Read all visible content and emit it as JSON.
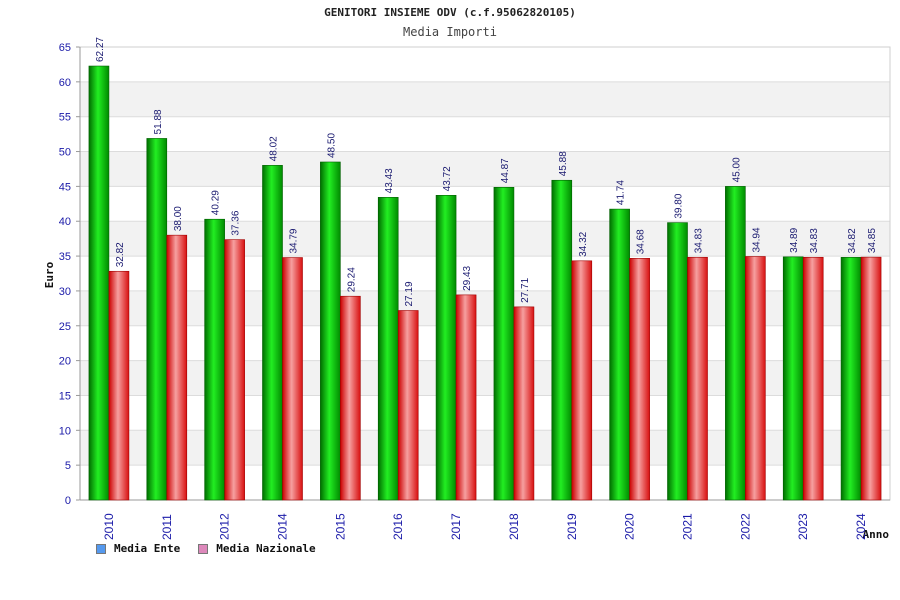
{
  "chart_data": {
    "type": "bar",
    "title": "GENITORI INSIEME ODV (c.f.95062820105)",
    "subtitle": "Media Importi",
    "ylabel": "Euro",
    "xlabel": "Anno",
    "ylim": [
      0,
      65
    ],
    "yticks": [
      0,
      5,
      10,
      15,
      20,
      25,
      30,
      35,
      40,
      45,
      50,
      55,
      60,
      65
    ],
    "categories": [
      "2010",
      "2011",
      "2012",
      "2014",
      "2015",
      "2016",
      "2017",
      "2018",
      "2019",
      "2020",
      "2021",
      "2022",
      "2023",
      "2024"
    ],
    "series": [
      {
        "name": "Media Ente",
        "color": "#00aa00",
        "values": [
          62.27,
          51.88,
          40.29,
          48.02,
          48.5,
          43.43,
          43.72,
          44.87,
          45.88,
          41.74,
          39.8,
          45.0,
          34.89,
          34.82
        ],
        "labels": [
          "62.27",
          "51.88",
          "40.29",
          "48.02",
          "48.50",
          "43.43",
          "43.72",
          "44.87",
          "45.88",
          "41.74",
          "39.80",
          "45.00",
          "34.89",
          "34.82"
        ]
      },
      {
        "name": "Media Nazionale",
        "color": "#dd2222",
        "values": [
          32.82,
          38.0,
          37.36,
          34.79,
          29.24,
          27.19,
          29.43,
          27.71,
          34.32,
          34.68,
          34.83,
          34.94,
          34.83,
          34.85
        ],
        "labels": [
          "32.82",
          "38.00",
          "37.36",
          "34.79",
          "29.24",
          "27.19",
          "29.43",
          "27.71",
          "34.32",
          "34.68",
          "34.83",
          "34.94",
          "34.83",
          "34.85"
        ]
      }
    ],
    "legend_swatches": [
      "#5599ee",
      "#dd88bb"
    ],
    "legend_position": "bottom-left",
    "grid": true
  }
}
